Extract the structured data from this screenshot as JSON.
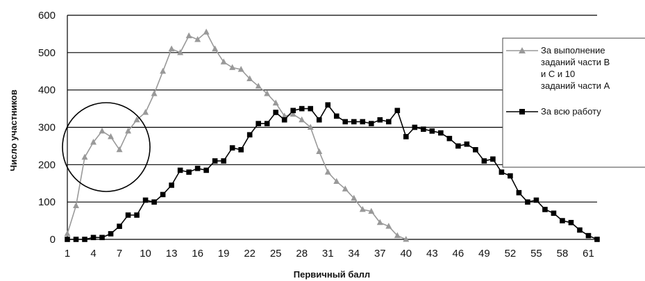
{
  "chart_data": {
    "type": "line",
    "xlabel": "Первичный балл",
    "ylabel": "Число участников",
    "xlim": [
      1,
      62
    ],
    "ylim": [
      0,
      600
    ],
    "y_ticks": [
      0,
      100,
      200,
      300,
      400,
      500,
      600
    ],
    "x_ticks": [
      1,
      4,
      7,
      10,
      13,
      16,
      19,
      22,
      25,
      28,
      31,
      34,
      37,
      40,
      43,
      46,
      49,
      52,
      55,
      58,
      61
    ],
    "grid": true,
    "legend_position": "right",
    "series": [
      {
        "name": "За выполнение заданий части В и С и 10 заданий части А",
        "marker": "triangle",
        "color": "#999999",
        "x": [
          1,
          2,
          3,
          4,
          5,
          6,
          7,
          8,
          9,
          10,
          11,
          12,
          13,
          14,
          15,
          16,
          17,
          18,
          19,
          20,
          21,
          22,
          23,
          24,
          25,
          26,
          27,
          28,
          29,
          30,
          31,
          32,
          33,
          34,
          35,
          36,
          37,
          38,
          39,
          40
        ],
        "values": [
          15,
          90,
          220,
          260,
          290,
          275,
          240,
          290,
          320,
          340,
          390,
          450,
          510,
          500,
          545,
          535,
          555,
          510,
          475,
          460,
          455,
          430,
          410,
          390,
          365,
          330,
          335,
          320,
          300,
          235,
          180,
          155,
          135,
          110,
          80,
          75,
          45,
          35,
          10,
          0
        ]
      },
      {
        "name": "За всю работу",
        "marker": "square",
        "color": "#000000",
        "x": [
          1,
          2,
          3,
          4,
          5,
          6,
          7,
          8,
          9,
          10,
          11,
          12,
          13,
          14,
          15,
          16,
          17,
          18,
          19,
          20,
          21,
          22,
          23,
          24,
          25,
          26,
          27,
          28,
          29,
          30,
          31,
          32,
          33,
          34,
          35,
          36,
          37,
          38,
          39,
          40,
          41,
          42,
          43,
          44,
          45,
          46,
          47,
          48,
          49,
          50,
          51,
          52,
          53,
          54,
          55,
          56,
          57,
          58,
          59,
          60,
          61,
          62
        ],
        "values": [
          0,
          0,
          0,
          5,
          5,
          15,
          35,
          65,
          65,
          105,
          100,
          120,
          145,
          185,
          180,
          190,
          185,
          210,
          210,
          245,
          240,
          280,
          310,
          310,
          340,
          320,
          345,
          350,
          350,
          320,
          360,
          330,
          315,
          315,
          315,
          310,
          320,
          315,
          345,
          275,
          300,
          295,
          290,
          285,
          270,
          250,
          255,
          240,
          210,
          215,
          180,
          170,
          125,
          100,
          105,
          80,
          70,
          50,
          45,
          25,
          10,
          0
        ]
      }
    ],
    "legend": {
      "entries": [
        {
          "lines": [
            "За выполнение",
            "заданий части В",
            "и С и 10",
            "заданий части А"
          ]
        },
        {
          "lines": [
            "За всю работу"
          ]
        }
      ]
    },
    "annotations": [
      {
        "type": "circle",
        "description": "highlighted dip region",
        "x_center": 6,
        "y_center": 245
      }
    ]
  }
}
